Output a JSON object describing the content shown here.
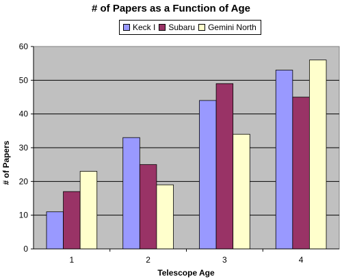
{
  "chart_data": {
    "type": "bar",
    "title": "# of Papers as a Function of Age",
    "xlabel": "Telescope Age",
    "ylabel": "# of Papers",
    "categories": [
      "1",
      "2",
      "3",
      "4"
    ],
    "series": [
      {
        "name": "Keck I",
        "values": [
          11,
          33,
          44,
          53
        ],
        "color": "#9999ff"
      },
      {
        "name": "Subaru",
        "values": [
          17,
          25,
          49,
          45
        ],
        "color": "#993366"
      },
      {
        "name": "Gemini North",
        "values": [
          23,
          19,
          34,
          56
        ],
        "color": "#ffffcc"
      }
    ],
    "ylim": [
      0,
      60
    ],
    "yticks": [
      "0",
      "10",
      "20",
      "30",
      "40",
      "50",
      "60"
    ],
    "plot_background": "#c0c0c0",
    "grid": true,
    "legend_position": "top-center"
  }
}
